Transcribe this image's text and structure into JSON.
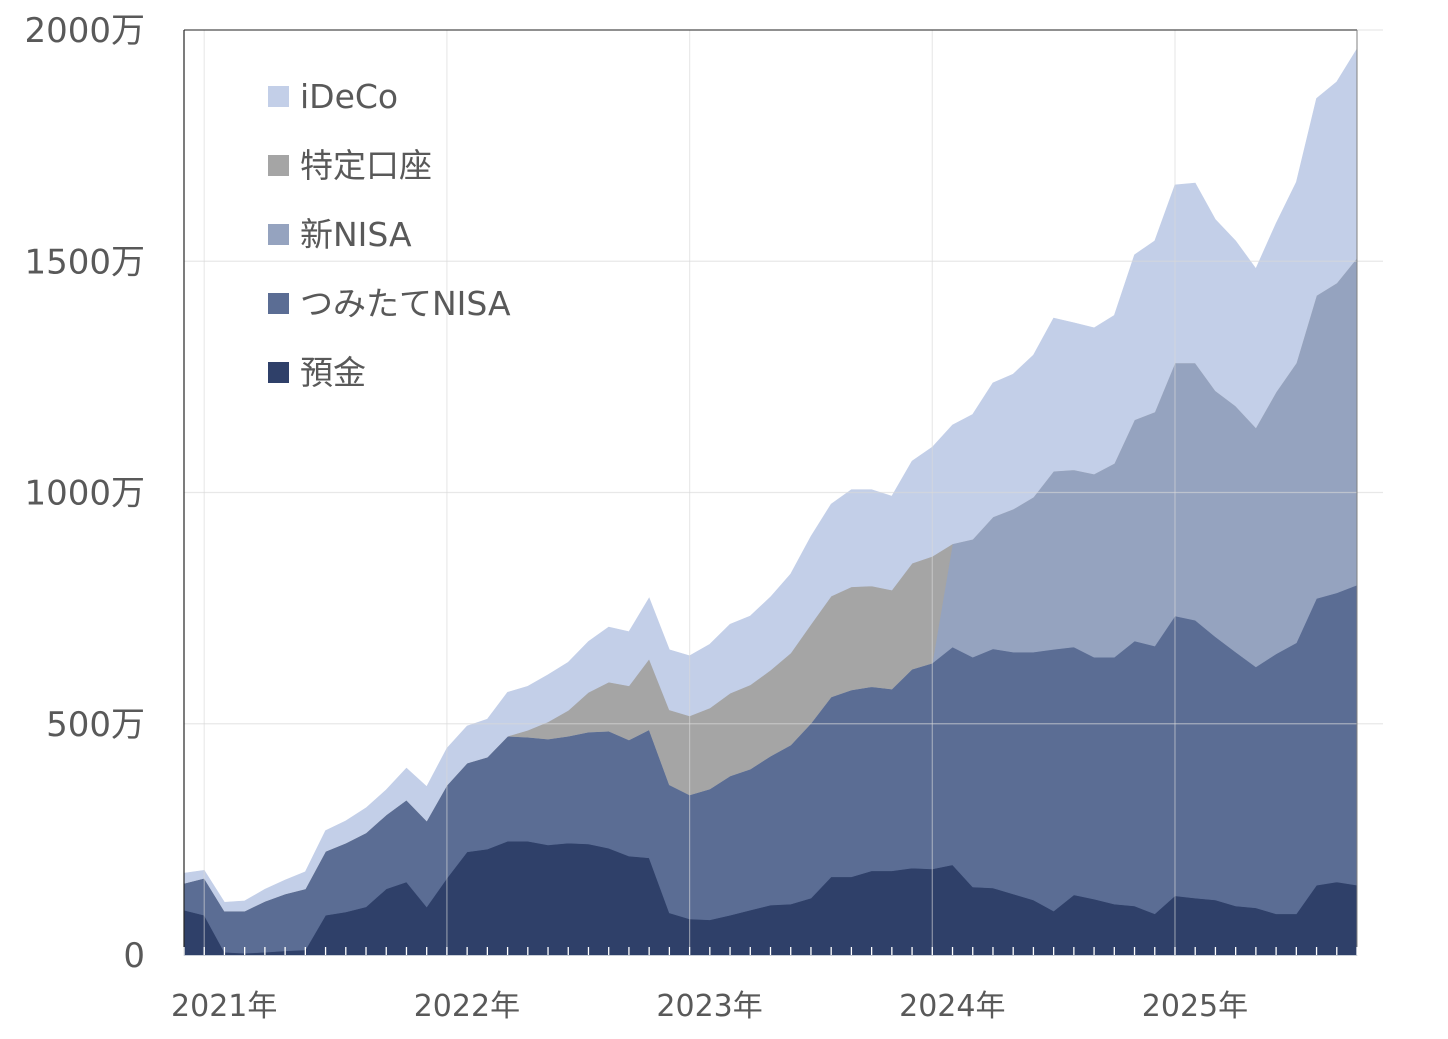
{
  "chart_data": {
    "type": "area",
    "stacked": true,
    "title": "",
    "xlabel": "",
    "ylabel": "",
    "ylim": [
      0,
      2000
    ],
    "y_ticks": [
      {
        "value": 0,
        "label": "0"
      },
      {
        "value": 500,
        "label": "500万"
      },
      {
        "value": 1000,
        "label": "1000万"
      },
      {
        "value": 1500,
        "label": "1500万"
      },
      {
        "value": 2000,
        "label": "2000万"
      }
    ],
    "x_ticks": [
      {
        "value": "2021-01",
        "label": "2021年"
      },
      {
        "value": "2022-01",
        "label": "2022年"
      },
      {
        "value": "2023-01",
        "label": "2023年"
      },
      {
        "value": "2024-01",
        "label": "2024年"
      },
      {
        "value": "2025-01",
        "label": "2025年"
      }
    ],
    "grid": true,
    "legend_position": "top-left",
    "x": [
      "2020-12",
      "2021-01",
      "2021-02",
      "2021-03",
      "2021-04",
      "2021-05",
      "2021-06",
      "2021-07",
      "2021-08",
      "2021-09",
      "2021-10",
      "2021-11",
      "2021-12",
      "2022-01",
      "2022-02",
      "2022-03",
      "2022-04",
      "2022-05",
      "2022-06",
      "2022-07",
      "2022-08",
      "2022-09",
      "2022-10",
      "2022-11",
      "2022-12",
      "2023-01",
      "2023-02",
      "2023-03",
      "2023-04",
      "2023-05",
      "2023-06",
      "2023-07",
      "2023-08",
      "2023-09",
      "2023-10",
      "2023-11",
      "2023-12",
      "2024-01",
      "2024-02",
      "2024-03",
      "2024-04",
      "2024-05",
      "2024-06",
      "2024-07",
      "2024-08",
      "2024-09",
      "2024-10",
      "2024-11",
      "2024-12",
      "2025-01",
      "2025-02",
      "2025-03",
      "2025-04",
      "2025-05",
      "2025-06",
      "2025-07",
      "2025-08",
      "2025-09",
      "2025-10"
    ],
    "series": [
      {
        "name": "預金",
        "color": "#2f4069",
        "values": [
          97,
          86,
          6,
          4,
          6,
          9,
          11,
          86,
          93,
          104,
          143,
          158,
          104,
          166,
          223,
          229,
          246,
          246,
          238,
          242,
          240,
          231,
          214,
          210,
          91,
          78,
          76,
          86,
          97,
          108,
          110,
          123,
          169,
          169,
          182,
          182,
          188,
          186,
          195,
          147,
          145,
          132,
          119,
          95,
          130,
          121,
          110,
          106,
          89,
          128,
          123,
          119,
          106,
          102,
          89,
          89,
          151,
          158,
          151
        ]
      },
      {
        "name": "つみたてNISA",
        "color": "#5b6d94",
        "values": [
          58,
          80,
          89,
          91,
          110,
          123,
          132,
          138,
          149,
          160,
          160,
          177,
          186,
          201,
          192,
          199,
          227,
          225,
          229,
          231,
          242,
          253,
          251,
          277,
          277,
          268,
          283,
          301,
          305,
          322,
          344,
          378,
          389,
          404,
          398,
          393,
          430,
          445,
          471,
          497,
          517,
          523,
          536,
          566,
          536,
          523,
          534,
          573,
          579,
          605,
          601,
          569,
          549,
          521,
          562,
          586,
          620,
          625,
          649
        ]
      },
      {
        "name": "新NISA",
        "color": "#95a3bf",
        "values": [
          0,
          0,
          0,
          0,
          0,
          0,
          0,
          0,
          0,
          0,
          0,
          0,
          0,
          0,
          0,
          0,
          0,
          0,
          0,
          0,
          0,
          0,
          0,
          0,
          0,
          0,
          0,
          0,
          0,
          0,
          0,
          0,
          0,
          0,
          0,
          0,
          0,
          0,
          223,
          255,
          285,
          309,
          335,
          385,
          383,
          396,
          419,
          478,
          506,
          547,
          556,
          532,
          532,
          517,
          566,
          605,
          655,
          670,
          707
        ]
      },
      {
        "name": "特定口座",
        "color": "#a5a5a5",
        "values": [
          0,
          0,
          0,
          0,
          0,
          0,
          0,
          0,
          0,
          0,
          0,
          0,
          0,
          0,
          0,
          0,
          0,
          15,
          37,
          56,
          86,
          106,
          117,
          153,
          162,
          171,
          175,
          179,
          182,
          186,
          199,
          214,
          218,
          223,
          218,
          214,
          229,
          231,
          0,
          0,
          0,
          0,
          0,
          0,
          0,
          0,
          0,
          0,
          0,
          0,
          0,
          0,
          0,
          0,
          0,
          0,
          0,
          0,
          0
        ]
      },
      {
        "name": "iDeCo",
        "color": "#c3cfe8",
        "values": [
          22,
          17,
          19,
          22,
          26,
          30,
          37,
          45,
          48,
          54,
          54,
          69,
          74,
          80,
          80,
          82,
          95,
          95,
          102,
          104,
          110,
          119,
          117,
          132,
          130,
          130,
          138,
          149,
          149,
          158,
          171,
          190,
          199,
          210,
          208,
          203,
          221,
          236,
          257,
          270,
          290,
          292,
          307,
          331,
          318,
          316,
          320,
          357,
          370,
          385,
          389,
          370,
          357,
          344,
          365,
          391,
          426,
          435,
          452
        ]
      }
    ],
    "legend": [
      "iDeCo",
      "特定口座",
      "新NISA",
      "つみたてNISA",
      "預金"
    ]
  }
}
